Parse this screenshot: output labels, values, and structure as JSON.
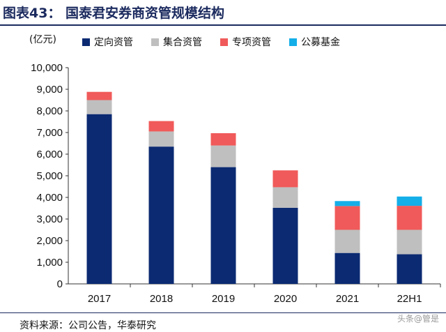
{
  "header": {
    "title": "图表43：  国泰君安券商资管规模结构",
    "unit": "(亿元)"
  },
  "footer": {
    "source": "资料来源：公司公告，华泰研究",
    "watermark": "头条@管是"
  },
  "colors": [
    "#0b2a72",
    "#bfbfbf",
    "#f05a5a",
    "#14aee8"
  ],
  "chart_data": {
    "type": "bar",
    "stacked": true,
    "title": "国泰君安券商资管规模结构",
    "ylabel": "亿元",
    "xlabel": "",
    "ylim": [
      0,
      10000
    ],
    "yticks": [
      0,
      1000,
      2000,
      3000,
      4000,
      5000,
      6000,
      7000,
      8000,
      9000,
      10000
    ],
    "ytick_labels": [
      "0",
      "1,000",
      "2,000",
      "3,000",
      "4,000",
      "5,000",
      "6,000",
      "7,000",
      "8,000",
      "9,000",
      "10,000"
    ],
    "categories": [
      "2017",
      "2018",
      "2019",
      "2020",
      "2021",
      "22H1"
    ],
    "legend_position": "top",
    "series": [
      {
        "name": "定向资管",
        "color": "#0b2a72",
        "values": [
          7850,
          6350,
          5400,
          3520,
          1430,
          1370
        ]
      },
      {
        "name": "集合资管",
        "color": "#bfbfbf",
        "values": [
          650,
          700,
          1000,
          950,
          1070,
          1130
        ]
      },
      {
        "name": "专项资管",
        "color": "#f05a5a",
        "values": [
          380,
          480,
          570,
          780,
          1100,
          1110
        ]
      },
      {
        "name": "公募基金",
        "color": "#14aee8",
        "values": [
          0,
          0,
          0,
          0,
          230,
          430
        ]
      }
    ]
  }
}
